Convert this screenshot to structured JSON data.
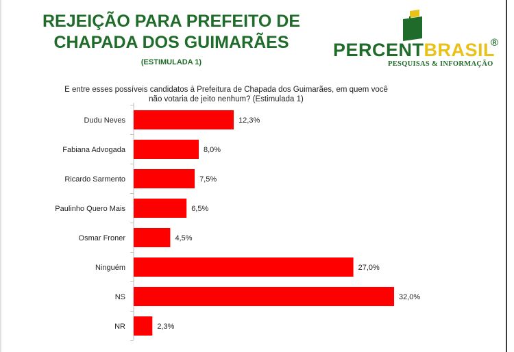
{
  "header": {
    "title_line1": "REJEIÇÃO PARA PREFEITO DE",
    "title_line2": "CHAPADA DOS GUIMARÃES",
    "subtitle": "(ESTIMULADA 1)"
  },
  "logo": {
    "name_part1": "PERCENT",
    "name_part2": "BRASIL",
    "registered": "®",
    "tagline": "PESQUISAS & INFORMAÇÃO"
  },
  "colors": {
    "title": "#1f6b2a",
    "bar": "#ff0000",
    "logo_yellow": "#e8c21a"
  },
  "question": {
    "line1": "E entre esses possíveis candidatos à Prefeitura de Chapada dos Guimarães, em quem você",
    "line2": "não votaria de jeito nenhum? (Estimulada 1)"
  },
  "chart_data": {
    "type": "bar",
    "orientation": "horizontal",
    "categories": [
      "Dudu Neves",
      "Fabiana Advogada",
      "Ricardo Sarmento",
      "Paulinho Quero Mais",
      "Osmar Froner",
      "Ninguém",
      "NS",
      "NR"
    ],
    "values": [
      12.3,
      8.0,
      7.5,
      6.5,
      4.5,
      27.0,
      32.0,
      2.3
    ],
    "value_labels": [
      "12,3%",
      "8,0%",
      "7,5%",
      "6,5%",
      "4,5%",
      "27,0%",
      "32,0%",
      "2,3%"
    ],
    "title": "",
    "xlabel": "",
    "ylabel": "",
    "xlim": [
      0,
      32.0
    ],
    "grid": false,
    "legend": "none"
  }
}
